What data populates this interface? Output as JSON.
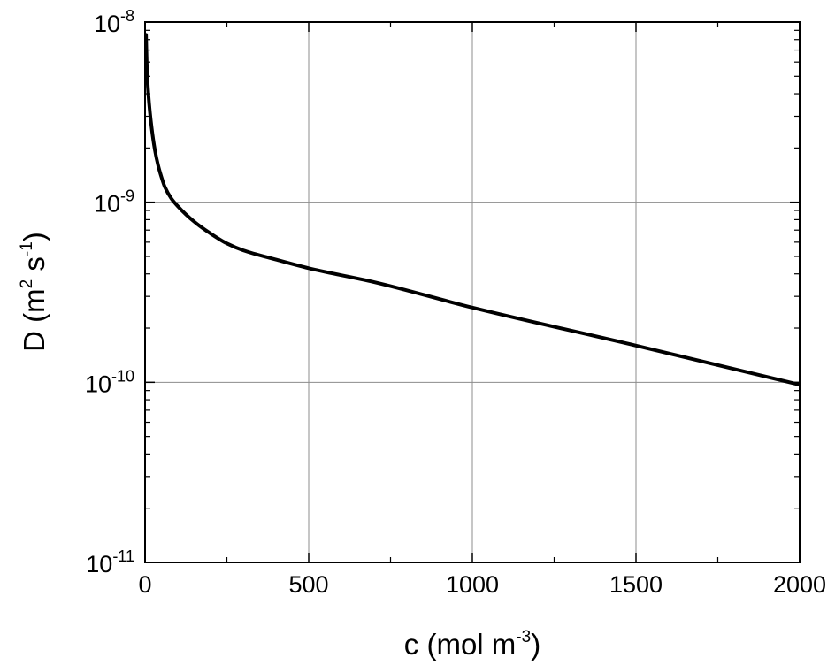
{
  "chart_data": {
    "type": "line",
    "title": "",
    "xlabel": {
      "base": "c (mol m",
      "sup": "-3",
      "close": ")"
    },
    "ylabel": {
      "p1": "D (m",
      "sup1": "2",
      "p2": " s",
      "sup2": "-1",
      "close": ")"
    },
    "xlim": [
      0,
      2000
    ],
    "ylim": [
      1e-11,
      1e-08
    ],
    "yscale": "log",
    "grid": true,
    "x_ticks": [
      0,
      500,
      1000,
      1500,
      2000
    ],
    "x_tick_labels": [
      "0",
      "500",
      "1000",
      "1500",
      "2000"
    ],
    "y_ticks": [
      {
        "value": 1e-08,
        "base": "10",
        "exp": "-8"
      },
      {
        "value": 1e-09,
        "base": "10",
        "exp": "-9"
      },
      {
        "value": 1e-10,
        "base": "10",
        "exp": "-10"
      },
      {
        "value": 1e-11,
        "base": "10",
        "exp": "-11"
      }
    ],
    "series": [
      {
        "color": "#000000",
        "x": [
          3,
          5,
          10,
          20,
          30,
          40,
          50,
          60,
          80,
          100,
          150,
          200,
          250,
          300,
          400,
          500,
          700,
          1000,
          1500,
          2000
        ],
        "y": [
          8.5e-09,
          6e-09,
          4e-09,
          2.6e-09,
          1.95e-09,
          1.6e-09,
          1.38e-09,
          1.22e-09,
          1.05e-09,
          9.5e-10,
          7.8e-10,
          6.7e-10,
          5.9e-10,
          5.4e-10,
          4.8e-10,
          4.3e-10,
          3.6e-10,
          2.6e-10,
          1.6e-10,
          9.7e-11
        ]
      }
    ]
  }
}
